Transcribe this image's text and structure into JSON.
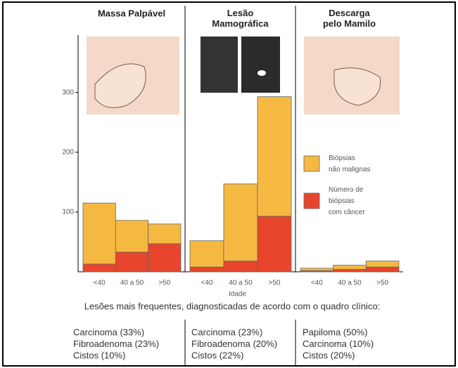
{
  "chart_data": [
    {
      "type": "bar",
      "stacked": true,
      "title": "Massa Palpável",
      "categories": [
        "<40",
        "40 a 50",
        ">50"
      ],
      "series": [
        {
          "color": "#e8452c",
          "values": [
            13,
            33,
            47
          ]
        },
        {
          "color": "#f5b942",
          "values": [
            102,
            53,
            33
          ]
        }
      ],
      "ylim": [
        0,
        396
      ],
      "yticks": [
        100,
        200,
        300
      ]
    },
    {
      "type": "bar",
      "stacked": true,
      "title": "Lesão\nMamográfica",
      "xlabel": "Idade",
      "categories": [
        "<40",
        "40 a 50",
        ">50"
      ],
      "series": [
        {
          "color": "#e8452c",
          "values": [
            8,
            18,
            93
          ]
        },
        {
          "color": "#f5b942",
          "values": [
            44,
            129,
            200
          ]
        }
      ],
      "ylim": [
        0,
        396
      ]
    },
    {
      "type": "bar",
      "stacked": true,
      "title": "Descarga\npelo Mamilo",
      "categories": [
        "<40",
        "40 a 50",
        ">50"
      ],
      "series": [
        {
          "name": "Número de\nbiópsias\ncom câncer",
          "color": "#e8452c",
          "values": [
            2,
            4,
            8
          ]
        },
        {
          "name": "Biópsias\nnão malignas",
          "color": "#f5b942",
          "values": [
            4,
            7,
            10
          ]
        }
      ],
      "ylim": [
        0,
        396
      ],
      "legend": true
    }
  ],
  "footer": {
    "caption": "Lesões mais frequentes, diagnosticadas de acordo com o quadro clínico:",
    "lists": [
      [
        "Carcinoma (33%)",
        "Fibroadenoma (23%)",
        "Cistos (10%)"
      ],
      [
        "Carcinoma (23%)",
        "Fibroadenoma (20%)",
        "Cistos (22%)"
      ],
      [
        "Papiloma (50%)",
        "Carcinoma (10%)",
        "Cistos (20%)"
      ]
    ]
  }
}
